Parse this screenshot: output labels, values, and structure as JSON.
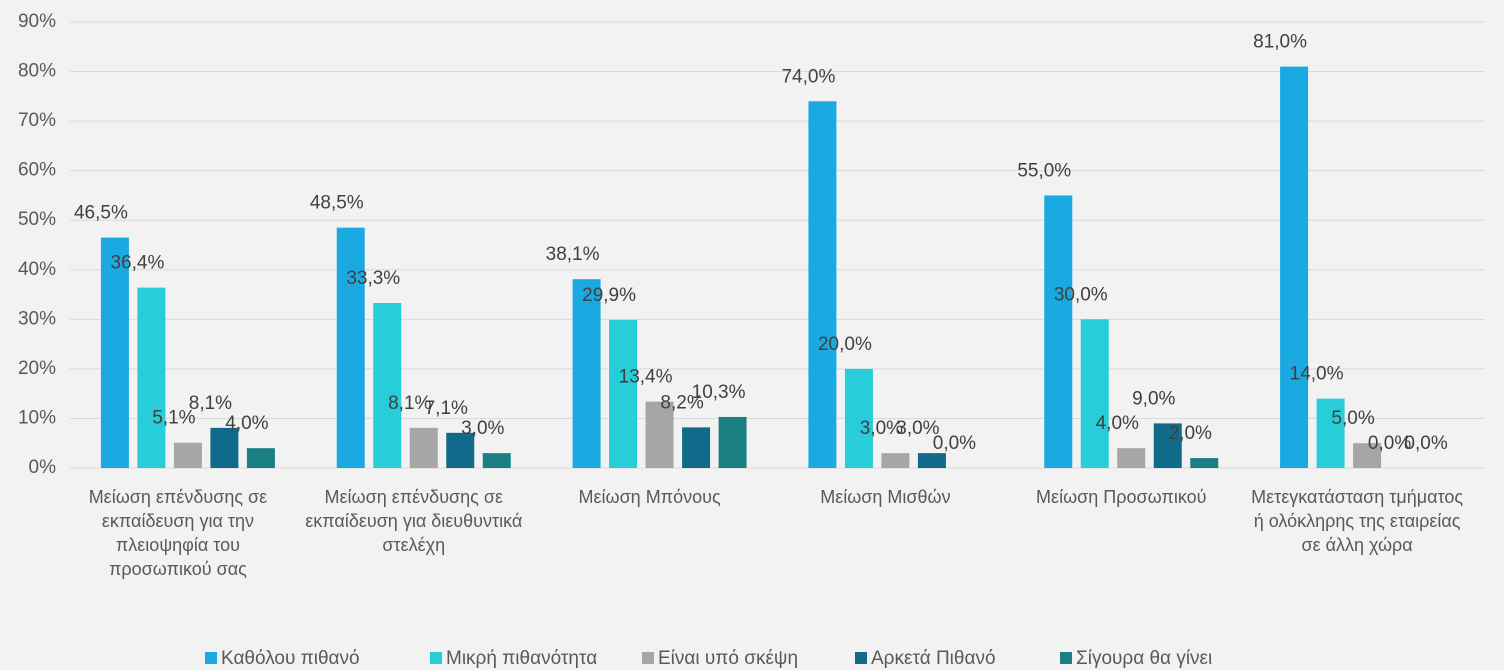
{
  "chart_data": {
    "type": "bar",
    "categories": [
      "Μείωση επένδυσης σε εκπαίδευση για την πλειοψηφία του προσωπικού σας",
      "Μείωση επένδυσης σε εκπαίδευση για διευθυντικά στελέχη",
      "Μείωση Μπόνους",
      "Μείωση Μισθών",
      "Μείωση Προσωπικού",
      "Μετεγκατάσταση τμήματος ή ολόκληρης της εταιρείας σε άλλη χώρα"
    ],
    "series": [
      {
        "name": "Καθόλου πιθανό",
        "color": "#1ba9e1",
        "values": [
          46.5,
          48.5,
          38.1,
          74.0,
          55.0,
          81.0
        ],
        "value_labels": [
          "46,5%",
          "48,5%",
          "38,1%",
          "74,0%",
          "55,0%",
          "81,0%"
        ]
      },
      {
        "name": "Μικρή πιθανότητα",
        "color": "#27cdd8",
        "values": [
          36.4,
          33.3,
          29.9,
          20.0,
          30.0,
          14.0
        ],
        "value_labels": [
          "36,4%",
          "33,3%",
          "29,9%",
          "20,0%",
          "30,0%",
          "14,0%"
        ]
      },
      {
        "name": "Είναι υπό σκέψη",
        "color": "#a6a6a6",
        "values": [
          5.1,
          8.1,
          13.4,
          3.0,
          4.0,
          5.0
        ],
        "value_labels": [
          "5,1%",
          "8,1%",
          "13,4%",
          "3,0%",
          "4,0%",
          "5,0%"
        ]
      },
      {
        "name": "Αρκετά Πιθανό",
        "color": "#126a8a",
        "values": [
          8.1,
          7.1,
          8.2,
          3.0,
          9.0,
          0.0
        ],
        "value_labels": [
          "8,1%",
          "7,1%",
          "8,2%",
          "3,0%",
          "9,0%",
          "0,0%"
        ]
      },
      {
        "name": "Σίγουρα θα γίνει",
        "color": "#1a7f83",
        "values": [
          4.0,
          3.0,
          10.3,
          0.0,
          2.0,
          0.0
        ],
        "value_labels": [
          "4,0%",
          "3,0%",
          "10,3%",
          "0,0%",
          "2,0%",
          "0,0%"
        ]
      }
    ],
    "ylim": [
      0,
      90
    ],
    "yticks": [
      {
        "value": 0,
        "label": "0%"
      },
      {
        "value": 10,
        "label": "10%"
      },
      {
        "value": 20,
        "label": "20%"
      },
      {
        "value": 30,
        "label": "30%"
      },
      {
        "value": 40,
        "label": "40%"
      },
      {
        "value": 50,
        "label": "50%"
      },
      {
        "value": 60,
        "label": "60%"
      },
      {
        "value": 70,
        "label": "70%"
      },
      {
        "value": 80,
        "label": "80%"
      },
      {
        "value": 90,
        "label": "90%"
      }
    ],
    "grid": true,
    "legend": "bottom"
  }
}
